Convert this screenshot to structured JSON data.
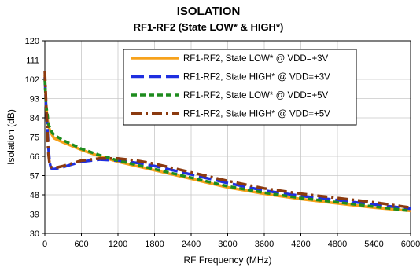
{
  "chart_data": {
    "type": "line",
    "title": "ISOLATION",
    "subtitle": "RF1-RF2 (State LOW* & HIGH*)",
    "xlabel": "RF Frequency (MHz)",
    "ylabel": "Isolation (dB)",
    "xlim": [
      0,
      6000
    ],
    "ylim": [
      30,
      120
    ],
    "xticks": [
      0,
      600,
      1200,
      1800,
      2400,
      3000,
      3600,
      4200,
      4800,
      5400,
      6000
    ],
    "yticks": [
      30,
      39,
      48,
      57,
      66,
      75,
      84,
      93,
      102,
      111,
      120
    ],
    "grid": true,
    "legend_position": "top-right",
    "series": [
      {
        "name": "RF1-RF2, State LOW* @ VDD=+3V",
        "color": "#F7A21B",
        "style": "solid",
        "x": [
          0,
          20,
          40,
          60,
          100,
          150,
          300,
          600,
          900,
          1200,
          1500,
          1800,
          2400,
          3000,
          3600,
          4200,
          4800,
          5400,
          6000
        ],
        "y": [
          104,
          90,
          84,
          80,
          77,
          74.5,
          72.5,
          69,
          66,
          63.5,
          61.5,
          59.5,
          55.5,
          51.5,
          48.5,
          46,
          44,
          42,
          40.5
        ]
      },
      {
        "name": "RF1-RF2, State HIGH* @ VDD=+3V",
        "color": "#1F2FE0",
        "style": "long-dash",
        "x": [
          0,
          20,
          40,
          60,
          80,
          100,
          150,
          300,
          600,
          900,
          1200,
          1500,
          1800,
          2400,
          3000,
          3600,
          4200,
          4800,
          5400,
          6000
        ],
        "y": [
          103,
          90,
          80,
          70,
          63,
          60.5,
          60,
          61,
          63.5,
          64.5,
          64,
          63,
          61.5,
          57.5,
          53.5,
          50,
          47.5,
          45.5,
          43.5,
          41.5
        ]
      },
      {
        "name": "RF1-RF2, State LOW* @ VDD=+5V",
        "color": "#1E8C1E",
        "style": "dash",
        "x": [
          0,
          20,
          40,
          60,
          100,
          150,
          300,
          600,
          900,
          1200,
          1500,
          1800,
          2400,
          3000,
          3600,
          4200,
          4800,
          5400,
          6000
        ],
        "y": [
          102,
          90,
          86,
          81,
          78,
          76,
          73.5,
          69.5,
          66.5,
          64,
          62,
          60,
          56,
          52,
          49,
          46.5,
          44.5,
          42.5,
          40.5
        ]
      },
      {
        "name": "RF1-RF2, State HIGH* @ VDD=+5V",
        "color": "#8B3A0F",
        "style": "dash-dot",
        "x": [
          0,
          15,
          30,
          45,
          60,
          80,
          100,
          150,
          300,
          600,
          900,
          1200,
          1500,
          1800,
          2400,
          3000,
          3600,
          4200,
          4800,
          5400,
          6000
        ],
        "y": [
          106,
          95,
          85,
          75,
          67,
          62,
          61,
          60.5,
          61.5,
          64,
          65,
          65,
          64,
          62.5,
          58.5,
          54.5,
          51,
          48.5,
          46.5,
          44.5,
          42
        ]
      }
    ]
  }
}
